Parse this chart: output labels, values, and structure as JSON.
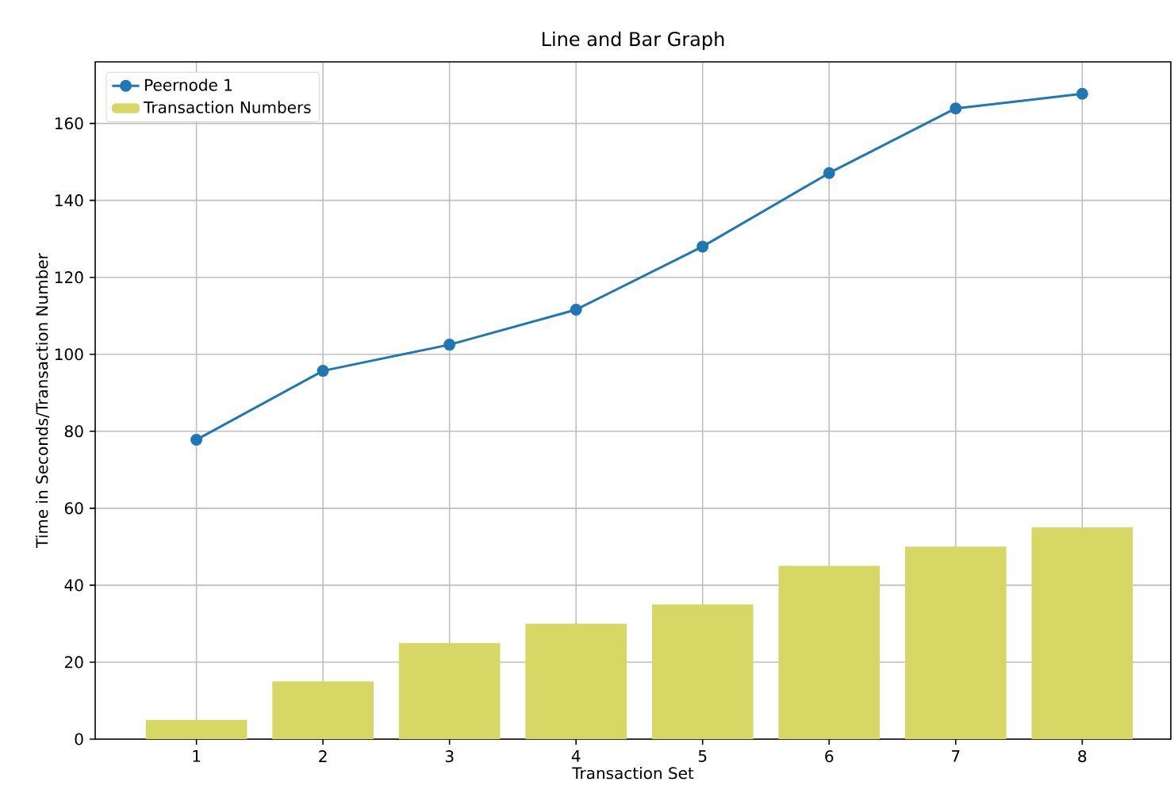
{
  "chart_data": {
    "type": "bar",
    "title": "Line and Bar Graph",
    "xlabel": "Transaction Set",
    "ylabel": "Time in Seconds/Transaction Number",
    "x": [
      1,
      2,
      3,
      4,
      5,
      6,
      7,
      8
    ],
    "series": [
      {
        "name": "Peernode 1",
        "type": "line",
        "color": "#1f77b4",
        "values": [
          77.8,
          95.7,
          102.5,
          111.6,
          128.0,
          147.1,
          163.9,
          167.7
        ]
      },
      {
        "name": "Transaction Numbers",
        "color": "#d7d766",
        "values": [
          5,
          15,
          25,
          30,
          35,
          45,
          50,
          55
        ]
      }
    ],
    "xlim": [
      0.2,
      8.7
    ],
    "ylim": [
      0,
      176
    ],
    "xticks": [
      1,
      2,
      3,
      4,
      5,
      6,
      7,
      8
    ],
    "yticks": [
      0,
      20,
      40,
      60,
      80,
      100,
      120,
      140,
      160
    ],
    "grid": true,
    "legend": "top left",
    "marker": "circle",
    "line_style": "solid"
  }
}
